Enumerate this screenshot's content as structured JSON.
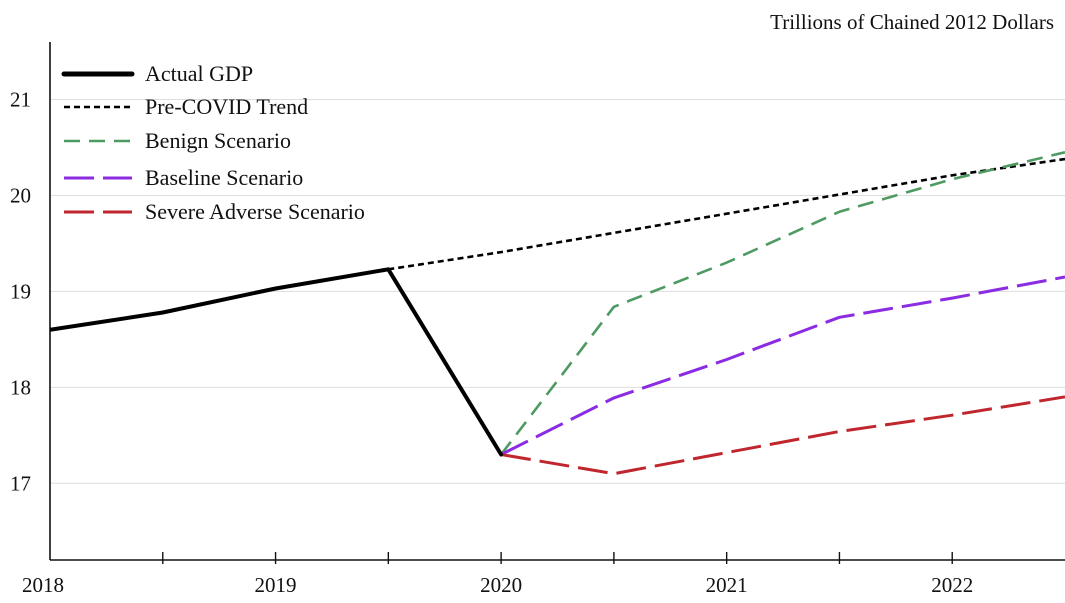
{
  "chart_data": {
    "type": "line",
    "units_label": "Trillions of Chained 2012 Dollars",
    "x_ticks": [
      "2018",
      "2019",
      "2020",
      "2021",
      "2022"
    ],
    "x_range": [
      2018.0,
      2022.5
    ],
    "y_ticks": [
      "17",
      "18",
      "19",
      "20",
      "21"
    ],
    "y_range": [
      16.2,
      21.6
    ],
    "grid": "horizontal",
    "legend_position": "top-left",
    "series": [
      {
        "name": "Actual GDP",
        "color": "#000000",
        "line_style": "solid",
        "x": [
          2018.0,
          2018.5,
          2019.0,
          2019.5,
          2020.0
        ],
        "y": [
          18.6,
          18.78,
          19.03,
          19.23,
          17.3
        ]
      },
      {
        "name": "Pre-COVID Trend",
        "color": "#000000",
        "line_style": "dotted",
        "x": [
          2019.5,
          2020.0,
          2020.5,
          2021.0,
          2021.5,
          2022.0,
          2022.5
        ],
        "y": [
          19.23,
          19.41,
          19.61,
          19.81,
          20.01,
          20.21,
          20.38
        ]
      },
      {
        "name": "Benign Scenario",
        "color": "#4e9a63",
        "line_style": "dashed",
        "x": [
          2020.0,
          2020.5,
          2021.0,
          2021.5,
          2022.0,
          2022.5
        ],
        "y": [
          17.3,
          18.84,
          19.3,
          19.83,
          20.17,
          20.45
        ]
      },
      {
        "name": "Baseline Scenario",
        "color": "#8b2be2",
        "line_style": "long-dashed",
        "x": [
          2020.0,
          2020.5,
          2021.0,
          2021.5,
          2022.0,
          2022.5
        ],
        "y": [
          17.3,
          17.89,
          18.29,
          18.73,
          18.93,
          19.15
        ]
      },
      {
        "name": "Severe Adverse Scenario",
        "color": "#c0262d",
        "line_style": "long-dashed",
        "x": [
          2020.0,
          2020.5,
          2021.0,
          2021.5,
          2022.0,
          2022.5
        ],
        "y": [
          17.3,
          17.1,
          17.32,
          17.54,
          17.71,
          17.9
        ]
      }
    ]
  }
}
